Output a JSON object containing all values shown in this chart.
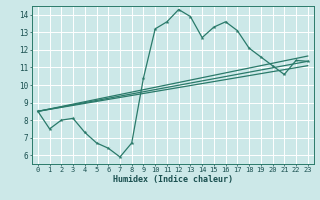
{
  "background_color": "#cce8e8",
  "grid_color": "#b8d8d8",
  "line_color": "#2a7a6a",
  "xlabel": "Humidex (Indice chaleur)",
  "xlim": [
    -0.5,
    23.5
  ],
  "ylim": [
    5.5,
    14.5
  ],
  "xticks": [
    0,
    1,
    2,
    3,
    4,
    5,
    6,
    7,
    8,
    9,
    10,
    11,
    12,
    13,
    14,
    15,
    16,
    17,
    18,
    19,
    20,
    21,
    22,
    23
  ],
  "yticks": [
    6,
    7,
    8,
    9,
    10,
    11,
    12,
    13,
    14
  ],
  "curve_x": [
    0,
    1,
    2,
    3,
    4,
    5,
    6,
    7,
    8,
    9,
    10,
    11,
    12,
    13,
    14,
    15,
    16,
    17,
    18,
    19,
    20,
    21,
    22,
    23
  ],
  "curve_y": [
    8.5,
    7.5,
    8.0,
    8.1,
    7.3,
    6.7,
    6.4,
    5.9,
    6.7,
    10.4,
    13.2,
    13.6,
    14.3,
    13.9,
    12.7,
    13.3,
    13.6,
    13.1,
    12.1,
    11.6,
    11.1,
    10.6,
    11.4,
    11.35
  ],
  "trend1_x": [
    0,
    23
  ],
  "trend1_y": [
    8.5,
    11.35
  ],
  "trend2_x": [
    0,
    23
  ],
  "trend2_y": [
    8.5,
    11.65
  ],
  "trend3_x": [
    0,
    23
  ],
  "trend3_y": [
    8.5,
    11.1
  ]
}
